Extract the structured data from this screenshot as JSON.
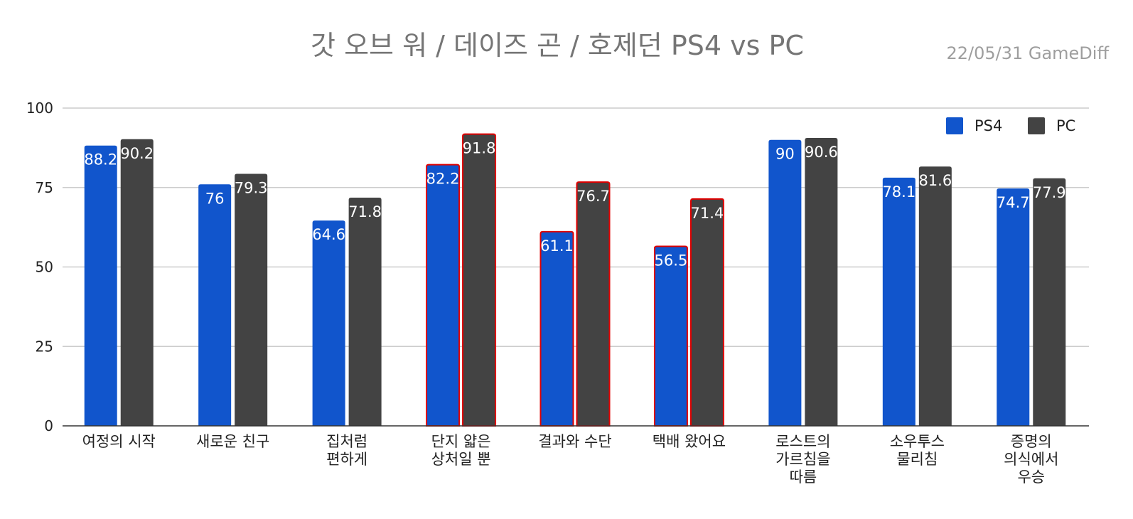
{
  "chart_data": {
    "type": "bar",
    "title": "갓 오브 워 / 데이즈 곤 / 호제던 PS4 vs PC",
    "subtitle": "22/05/31  GameDiff",
    "categories": [
      [
        "여정의 시작"
      ],
      [
        "새로운 친구"
      ],
      [
        "집처럼",
        "편하게"
      ],
      [
        "단지 얇은",
        "상처일 뿐"
      ],
      [
        "결과와 수단"
      ],
      [
        "택배 왔어요"
      ],
      [
        "로스트의",
        "가르침을",
        "따름"
      ],
      [
        "소우투스",
        "물리침"
      ],
      [
        "증명의",
        "의식에서",
        "우승"
      ]
    ],
    "series": [
      {
        "name": "PS4",
        "color": "#1155cc",
        "values": [
          88.2,
          76,
          64.6,
          82.2,
          61.1,
          56.5,
          90,
          78.1,
          74.7
        ]
      },
      {
        "name": "PC",
        "color": "#434343",
        "values": [
          90.2,
          79.3,
          71.8,
          91.8,
          76.7,
          71.4,
          90.6,
          81.6,
          77.9
        ]
      }
    ],
    "highlighted_categories": [
      3,
      4,
      5
    ],
    "highlight_color": "#e00000",
    "ylim": [
      0,
      100
    ],
    "yticks": [
      0,
      25,
      50,
      75,
      100
    ],
    "grid": true,
    "legend_position": "top-right"
  }
}
